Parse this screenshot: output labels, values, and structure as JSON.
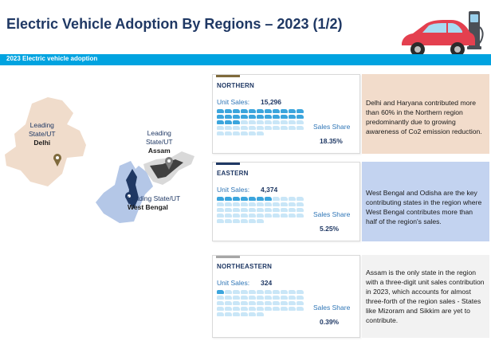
{
  "title": "Electric Vehicle Adoption By Regions – 2023 (1/2)",
  "banner": "2023 Electric vehicle adoption",
  "colors": {
    "accent": "#00a3e0",
    "navy": "#1f3864",
    "northern": "#7f6a3c",
    "eastern": "#1f3864",
    "northeastern": "#a6a6a6"
  },
  "map": {
    "delhi": {
      "line1": "Leading",
      "line2": "State/UT",
      "name": "Delhi"
    },
    "assam": {
      "line1": "Leading",
      "line2": "State/UT",
      "name": "Assam"
    },
    "westbengal": {
      "line1": "Leading State/UT",
      "name": "West Bengal"
    }
  },
  "regions": [
    {
      "name": "NORTHERN",
      "unit_label": "Unit Sales:",
      "unit_sales": "15,296",
      "share_label": "Sales Share",
      "share": "18.35%",
      "share_value": 18.35,
      "note": "Delhi and Haryana contributed more than 60% in the Northern region predominantly due to growing awareness of Co2 emission reduction."
    },
    {
      "name": "EASTERN",
      "unit_label": "Unit Sales:",
      "unit_sales": "4,374",
      "share_label": "Sales Share",
      "share": "5.25%",
      "share_value": 5.25,
      "note": "West Bengal and Odisha are the key contributing states in the region where West Bengal contributes more than half of the region's sales."
    },
    {
      "name": "NORTHEASTERN",
      "unit_label": "Unit Sales:",
      "unit_sales": "324",
      "share_label": "Sales Share",
      "share": "0.39%",
      "share_value": 0.39,
      "note": "Assam is the only state in the region with a three-digit unit sales contribution in 2023, which accounts for almost three-forth of the region sales - States like Mizoram and Sikkim are yet to contribute."
    }
  ]
}
